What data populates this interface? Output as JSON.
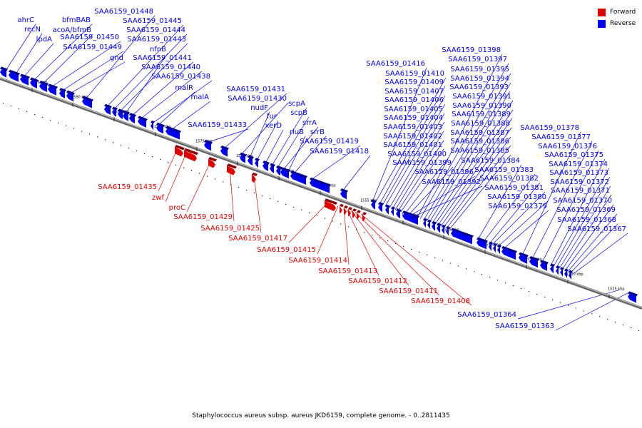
{
  "caption": "Staphylococcus aureus subsp. aureus JKD6159, complete genome. - 0..2811435",
  "legend": [
    {
      "label": "Forward",
      "color": "#e00000"
    },
    {
      "label": "Reverse",
      "color": "#0000ee"
    }
  ],
  "colors": {
    "forward": "#e00000",
    "reverse": "#0000ee",
    "backbone": "#909090"
  },
  "ticks": [
    "1595 kbp",
    "1590 kbp",
    "1585 kbp",
    "1580 kbp",
    "1575 kbp",
    "1570 kbp",
    "1565 kbp",
    "1560 kbp",
    "1555 kbp",
    "1550 kbp",
    "1545 kbp",
    "1540 kbp",
    "1535 kbp",
    "1530 kbp",
    "1525 kbp"
  ],
  "reverse_labels": [
    "ahrC",
    "recN",
    "lpdA",
    "bfmBAB",
    "acoA/bfmB",
    "SAA6159_01450",
    "SAA6159_01449",
    "gnd",
    "SAA6159_01448",
    "SAA6159_01445",
    "SAA6159_01444",
    "SAA6159_01443",
    "nfnB",
    "SAA6159_01441",
    "SAA6159_01440",
    "SAA6159_01438",
    "malR",
    "malA",
    "SAA6159_01433",
    "SAA6159_01431",
    "SAA6159_01430",
    "nudF",
    "fur",
    "xerD",
    "scpA",
    "scpB",
    "srrA",
    "rluB",
    "srrB",
    "SAA6159_01419",
    "SAA6159_01418",
    "SAA6159_01416",
    "SAA6159_01410",
    "SAA6159_01409",
    "SAA6159_01407",
    "SAA6159_01406",
    "SAA6159_01405",
    "SAA6159_01404",
    "SAA6159_01403",
    "SAA6159_01402",
    "SAA6159_01401",
    "SAA6159_01400",
    "SAA6159_01399",
    "SAA6159_01396",
    "SAA6159_01392",
    "SAA6159_01398",
    "SAA6159_01397",
    "SAA6159_01395",
    "SAA6159_01394",
    "SAA6159_01393",
    "SAA6159_01391",
    "SAA6159_01390",
    "SAA6159_01389",
    "SAA6159_01388",
    "SAA6159_01387",
    "SAA6159_01386",
    "SAA6159_01385",
    "SAA6159_01384",
    "SAA6159_01383",
    "SAA6159_01382",
    "SAA6159_01381",
    "SAA6159_01380",
    "SAA6159_01379",
    "SAA6159_01378",
    "SAA6159_01377",
    "SAA6159_01376",
    "SAA6159_01375",
    "SAA6159_01374",
    "SAA6159_01373",
    "SAA6159_01372",
    "SAA6159_01371",
    "SAA6159_01370",
    "SAA6159_01369",
    "SAA6159_01368",
    "SAA6159_01367",
    "SAA6159_01364",
    "SAA6159_01363"
  ],
  "forward_labels": [
    "SAA6159_01435",
    "zwf",
    "proC",
    "SAA6159_01429",
    "SAA6159_01425",
    "SAA6159_01417",
    "SAA6159_01415",
    "SAA6159_01414",
    "SAA6159_01413",
    "SAA6159_01412",
    "SAA6159_01411",
    "SAA6159_01408"
  ]
}
